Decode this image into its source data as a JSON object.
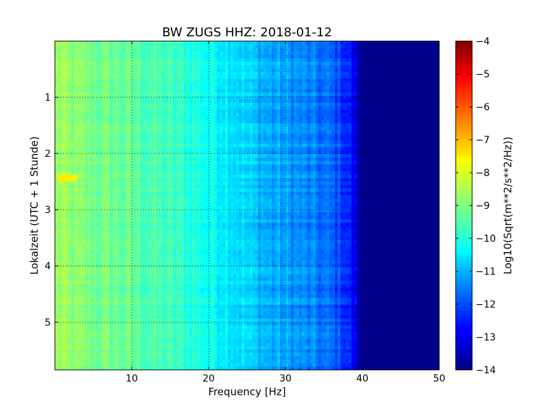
{
  "chart_data": {
    "type": "heatmap",
    "title": "BW ZUGS HHZ: 2018-01-12",
    "xlabel": "Frequency [Hz]",
    "ylabel": "Lokalzeit (UTC + 1 Stunde)",
    "colorbar_label": "Log10(Sqrt(m**2/s**2/Hz))",
    "xlim": [
      0,
      50
    ],
    "ylim": [
      5.85,
      0
    ],
    "y_inverted": true,
    "grid": true,
    "colormap": "jet",
    "clim": [
      -14,
      -4
    ],
    "x_ticks": [
      10,
      20,
      30,
      40,
      50
    ],
    "x_tick_labels": [
      "10",
      "20",
      "30",
      "40",
      "50"
    ],
    "y_ticks": [
      1,
      2,
      3,
      4,
      5
    ],
    "y_tick_labels": [
      "1",
      "2",
      "3",
      "4",
      "5"
    ],
    "colorbar_ticks": [
      -4,
      -5,
      -6,
      -7,
      -8,
      -9,
      -10,
      -11,
      -12,
      -13,
      -14
    ],
    "colorbar_tick_labels": [
      "−4",
      "−5",
      "−6",
      "−7",
      "−8",
      "−9",
      "−10",
      "−11",
      "−12",
      "−13",
      "−14"
    ],
    "frequency_profile": {
      "freq_hz": [
        0,
        2,
        5,
        8,
        10,
        14,
        17,
        20,
        23,
        25,
        28,
        30,
        33,
        36,
        38,
        39,
        40,
        45,
        50
      ],
      "log10_amplitude": [
        -8.7,
        -8.9,
        -9.1,
        -9.2,
        -9.3,
        -9.6,
        -9.8,
        -10.1,
        -10.4,
        -10.7,
        -11.1,
        -11.2,
        -11.5,
        -11.8,
        -12.3,
        -13.0,
        -13.9,
        -13.9,
        -13.9
      ]
    },
    "features": [
      {
        "freq_range_hz": [
          0.5,
          3
        ],
        "time_hours": 2.42,
        "log10_amplitude": -7.6
      }
    ]
  }
}
